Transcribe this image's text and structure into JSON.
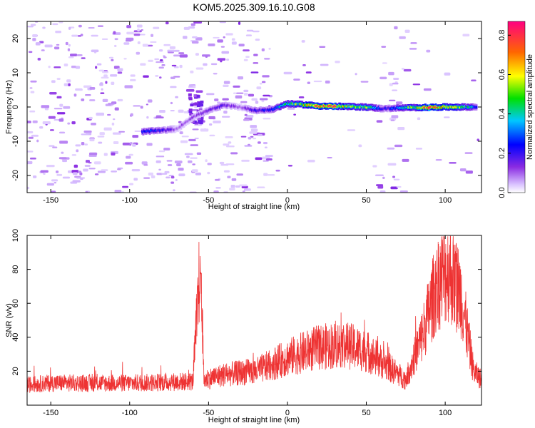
{
  "title": "KOM5.2025.309.16.10.G08",
  "chart_data": [
    {
      "type": "heatmap",
      "xlabel": "Height of straight line (km)",
      "ylabel": "Frequency (Hz)",
      "xlim": [
        -165,
        123
      ],
      "ylim": [
        -25,
        25
      ],
      "xticks": [
        -150,
        -100,
        -50,
        0,
        50,
        100
      ],
      "yticks": [
        -20,
        -10,
        0,
        10,
        20
      ],
      "colorbar": {
        "label": "Normalized spectral amplitude",
        "range": [
          0,
          0.87
        ],
        "ticks": [
          0.0,
          0.2,
          0.4,
          0.6,
          0.8
        ]
      },
      "ridge": [
        {
          "x": -92,
          "freq": -7.2,
          "amp": 0.25
        },
        {
          "x": -85,
          "freq": -7.0,
          "amp": 0.3
        },
        {
          "x": -70,
          "freq": -6.5,
          "amp": 0.1
        },
        {
          "x": -60,
          "freq": -3.0,
          "amp": 0.12
        },
        {
          "x": -50,
          "freq": -1.0,
          "amp": 0.15
        },
        {
          "x": -40,
          "freq": 0.5,
          "amp": 0.18
        },
        {
          "x": -30,
          "freq": 0.0,
          "amp": 0.1
        },
        {
          "x": -20,
          "freq": -1.0,
          "amp": 0.2
        },
        {
          "x": -10,
          "freq": -0.8,
          "amp": 0.25
        },
        {
          "x": 0,
          "freq": 1.0,
          "amp": 0.45
        },
        {
          "x": 10,
          "freq": 0.7,
          "amp": 0.6
        },
        {
          "x": 20,
          "freq": 0.3,
          "amp": 0.75
        },
        {
          "x": 30,
          "freq": 0.2,
          "amp": 0.8
        },
        {
          "x": 40,
          "freq": 0.1,
          "amp": 0.5
        },
        {
          "x": 50,
          "freq": 0.0,
          "amp": 0.55
        },
        {
          "x": 60,
          "freq": -0.5,
          "amp": 0.2
        },
        {
          "x": 70,
          "freq": -0.3,
          "amp": 0.3
        },
        {
          "x": 80,
          "freq": -0.2,
          "amp": 0.55
        },
        {
          "x": 90,
          "freq": -0.1,
          "amp": 0.85
        },
        {
          "x": 100,
          "freq": 0.0,
          "amp": 0.6
        },
        {
          "x": 110,
          "freq": 0.0,
          "amp": 0.5
        },
        {
          "x": 120,
          "freq": 0.0,
          "amp": 0.3
        }
      ]
    },
    {
      "type": "line",
      "xlabel": "Height of straight line (km)",
      "ylabel": "SNR (v/v)",
      "xlim": [
        -165,
        123
      ],
      "ylim": [
        0,
        100
      ],
      "xticks": [
        -150,
        -100,
        -50,
        0,
        50,
        100
      ],
      "yticks": [
        20,
        40,
        60,
        80,
        100
      ],
      "color": "#ee3333",
      "envelope": [
        {
          "x": -165,
          "snr": 12
        },
        {
          "x": -150,
          "snr": 13
        },
        {
          "x": -100,
          "snr": 13
        },
        {
          "x": -60,
          "snr": 14
        },
        {
          "x": -55,
          "snr": 85
        },
        {
          "x": -53,
          "snr": 15
        },
        {
          "x": -40,
          "snr": 18
        },
        {
          "x": -20,
          "snr": 20
        },
        {
          "x": 0,
          "snr": 28
        },
        {
          "x": 20,
          "snr": 34
        },
        {
          "x": 35,
          "snr": 36
        },
        {
          "x": 50,
          "snr": 32
        },
        {
          "x": 65,
          "snr": 22
        },
        {
          "x": 75,
          "snr": 15
        },
        {
          "x": 85,
          "snr": 40
        },
        {
          "x": 95,
          "snr": 72
        },
        {
          "x": 102,
          "snr": 80
        },
        {
          "x": 110,
          "snr": 65
        },
        {
          "x": 118,
          "snr": 20
        },
        {
          "x": 123,
          "snr": 15
        }
      ]
    }
  ]
}
